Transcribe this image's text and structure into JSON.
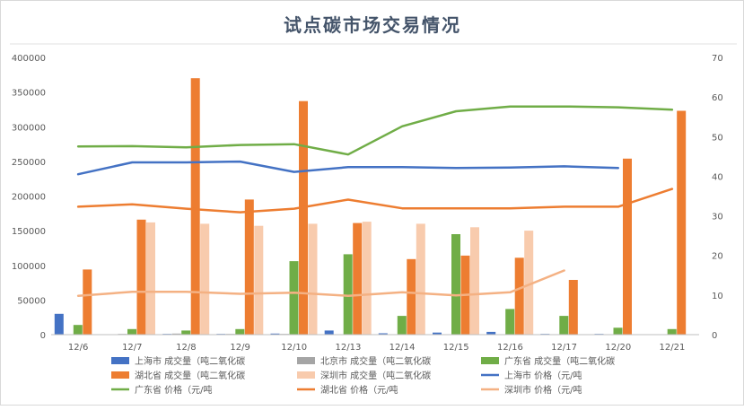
{
  "chart_data": {
    "type": "bar",
    "title": "试点碳市场交易情况",
    "categories": [
      "12/6",
      "12/7",
      "12/8",
      "12/9",
      "12/10",
      "12/13",
      "12/14",
      "12/15",
      "12/16",
      "12/17",
      "12/20",
      "12/21"
    ],
    "y_left": {
      "min": 0,
      "max": 400000,
      "step": 50000,
      "ticks": [
        "0",
        "50000",
        "100000",
        "150000",
        "200000",
        "250000",
        "300000",
        "350000",
        "400000"
      ]
    },
    "y_right": {
      "min": 0,
      "max": 70,
      "step": 10,
      "ticks": [
        "0",
        "10",
        "20",
        "30",
        "40",
        "50",
        "60",
        "70"
      ]
    },
    "grid": false,
    "legend_position": "bottom",
    "bar_series": [
      {
        "name": "上海市 成交量（吨二氧化碳",
        "color": "#4472c4",
        "values": [
          30000,
          500,
          1000,
          1000,
          1500,
          6000,
          2000,
          3000,
          4000,
          1000,
          1000,
          0
        ]
      },
      {
        "name": "北京市 成交量（吨二氧化碳",
        "color": "#a5a5a5",
        "values": [
          500,
          1000,
          1500,
          1000,
          1000,
          500,
          500,
          500,
          500,
          500,
          500,
          0
        ]
      },
      {
        "name": "广东省 成交量（吨二氧化碳",
        "color": "#70ad47",
        "values": [
          14000,
          8000,
          6000,
          8000,
          106000,
          116000,
          27000,
          145000,
          37000,
          27000,
          10000,
          8000
        ]
      },
      {
        "name": "湖北省 成交量（吨二氧化碳",
        "color": "#ed7d31",
        "values": [
          94000,
          166000,
          370000,
          195000,
          337000,
          161000,
          109000,
          114000,
          111000,
          79000,
          254000,
          323000
        ]
      },
      {
        "name": "深圳市 成交量（吨二氧化碳",
        "color": "#f8cbad",
        "values": [
          0,
          162000,
          160000,
          157000,
          160000,
          163000,
          160000,
          155000,
          150000,
          0,
          0,
          0
        ]
      }
    ],
    "line_series": [
      {
        "name": "上海市 价格（元/吨",
        "color": "#4472c4",
        "values": [
          40.5,
          43.5,
          43.5,
          43.7,
          41.1,
          42.3,
          42.3,
          42.1,
          42.2,
          42.5,
          42.1,
          null
        ]
      },
      {
        "name": "广东省 价格（元/吨",
        "color": "#70ad47",
        "values": [
          47.5,
          47.6,
          47.3,
          47.9,
          48.1,
          45.5,
          52.6,
          56.4,
          57.6,
          57.6,
          57.4,
          56.8
        ]
      },
      {
        "name": "湖北省 价格（元/吨",
        "color": "#ed7d31",
        "values": [
          32.3,
          32.9,
          31.8,
          30.9,
          31.8,
          34.1,
          31.9,
          31.9,
          31.9,
          32.3,
          32.3,
          36.8
        ]
      },
      {
        "name": "深圳市 价格（元/吨",
        "color": "#f4b183",
        "values": [
          9.8,
          10.8,
          10.8,
          10.3,
          10.6,
          9.8,
          10.7,
          9.9,
          10.7,
          16.2,
          null,
          null
        ]
      }
    ]
  }
}
